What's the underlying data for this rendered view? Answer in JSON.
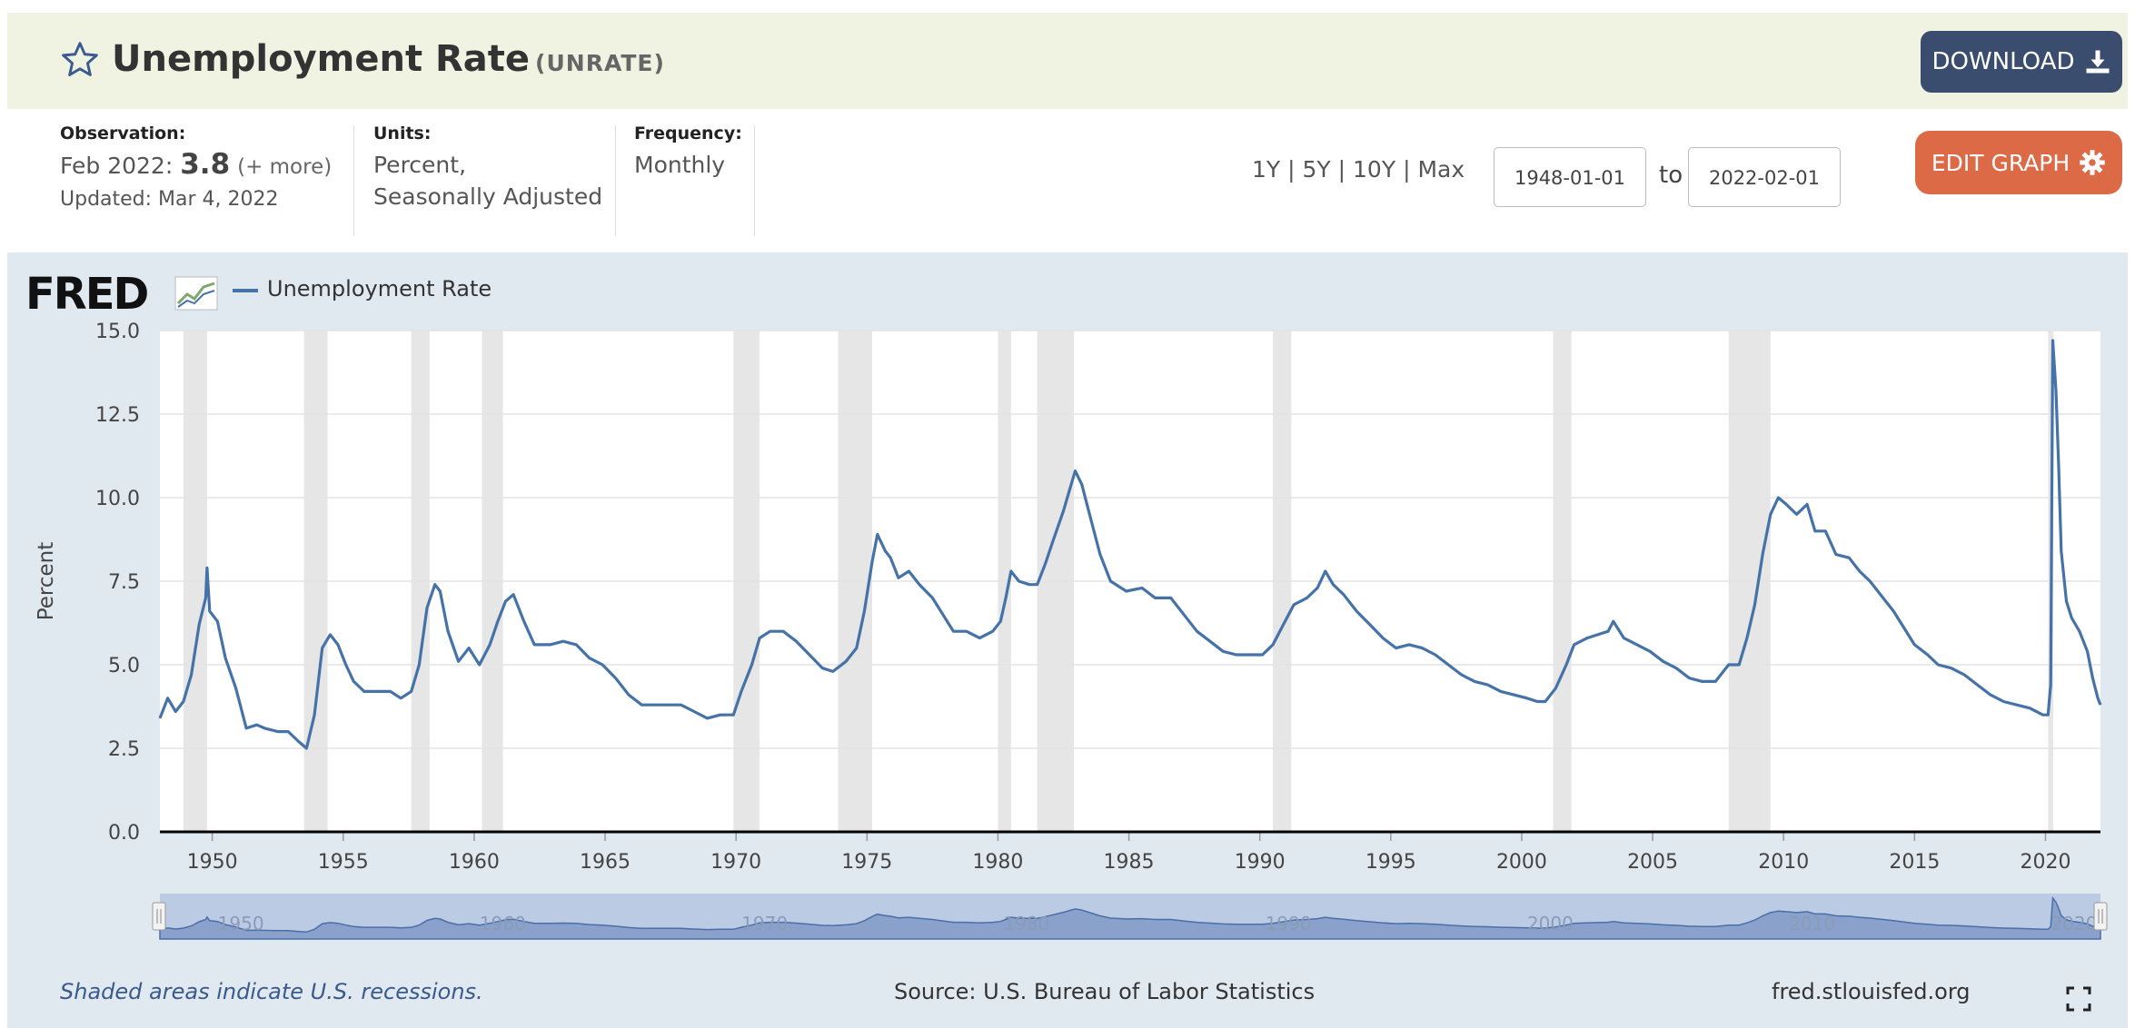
{
  "header": {
    "title": "Unemployment Rate",
    "series_code": "(UNRATE)",
    "download_label": "DOWNLOAD"
  },
  "observation": {
    "label": "Observation:",
    "period": "Feb 2022:",
    "value": "3.8",
    "more": "(+ more)",
    "updated": "Updated: Mar 4, 2022"
  },
  "units": {
    "label": "Units:",
    "line1": "Percent,",
    "line2": "Seasonally Adjusted"
  },
  "frequency": {
    "label": "Frequency:",
    "value": "Monthly"
  },
  "range_buttons": [
    "1Y",
    "5Y",
    "10Y",
    "Max"
  ],
  "date_range": {
    "start": "1948-01-01",
    "to_label": "to",
    "end": "2022-02-01"
  },
  "edit_graph_label": "EDIT GRAPH",
  "chart_header": {
    "logo": "FRED",
    "legend": "Unemployment Rate"
  },
  "footer": {
    "note": "Shaded areas indicate U.S. recessions.",
    "source": "Source: U.S. Bureau of Labor Statistics",
    "url": "fred.stlouisfed.org"
  },
  "colors": {
    "line": "#4572a7",
    "recession": "#e6e6e6",
    "accent_edit": "#dc6a46",
    "download_bg": "#3b4d6e"
  },
  "chart_data": {
    "type": "line",
    "title": "Unemployment Rate",
    "ylabel": "Percent",
    "xlabel": "",
    "xlim": [
      1948.0,
      2022.1
    ],
    "ylim": [
      0,
      15
    ],
    "yticks": [
      0.0,
      2.5,
      5.0,
      7.5,
      10.0,
      12.5,
      15.0
    ],
    "ytick_labels": [
      "0.0",
      "2.5",
      "5.0",
      "7.5",
      "10.0",
      "12.5",
      "15.0"
    ],
    "xticks": [
      1950,
      1955,
      1960,
      1965,
      1970,
      1975,
      1980,
      1985,
      1990,
      1995,
      2000,
      2005,
      2010,
      2015,
      2020
    ],
    "navigator_labels": [
      1950,
      1960,
      1970,
      1980,
      1990,
      2000,
      2010,
      2020
    ],
    "recessions": [
      [
        1948.9,
        1949.8
      ],
      [
        1953.5,
        1954.4
      ],
      [
        1957.6,
        1958.3
      ],
      [
        1960.3,
        1961.1
      ],
      [
        1969.9,
        1970.9
      ],
      [
        1973.9,
        1975.2
      ],
      [
        1980.0,
        1980.5
      ],
      [
        1981.5,
        1982.9
      ],
      [
        1990.5,
        1991.2
      ],
      [
        2001.2,
        2001.9
      ],
      [
        2007.9,
        2009.5
      ],
      [
        2020.1,
        2020.3
      ]
    ],
    "series": [
      {
        "name": "Unemployment Rate",
        "points": [
          [
            1948.0,
            3.4
          ],
          [
            1948.3,
            4.0
          ],
          [
            1948.6,
            3.6
          ],
          [
            1948.9,
            3.9
          ],
          [
            1949.2,
            4.7
          ],
          [
            1949.5,
            6.2
          ],
          [
            1949.75,
            7.0
          ],
          [
            1949.8,
            7.9
          ],
          [
            1949.9,
            6.6
          ],
          [
            1950.2,
            6.3
          ],
          [
            1950.5,
            5.2
          ],
          [
            1950.9,
            4.3
          ],
          [
            1951.3,
            3.1
          ],
          [
            1951.7,
            3.2
          ],
          [
            1952.0,
            3.1
          ],
          [
            1952.5,
            3.0
          ],
          [
            1952.9,
            3.0
          ],
          [
            1953.3,
            2.7
          ],
          [
            1953.6,
            2.5
          ],
          [
            1953.9,
            3.5
          ],
          [
            1954.2,
            5.5
          ],
          [
            1954.5,
            5.9
          ],
          [
            1954.8,
            5.6
          ],
          [
            1955.1,
            5.0
          ],
          [
            1955.4,
            4.5
          ],
          [
            1955.8,
            4.2
          ],
          [
            1956.3,
            4.2
          ],
          [
            1956.8,
            4.2
          ],
          [
            1957.2,
            4.0
          ],
          [
            1957.6,
            4.2
          ],
          [
            1957.9,
            5.0
          ],
          [
            1958.2,
            6.7
          ],
          [
            1958.5,
            7.4
          ],
          [
            1958.7,
            7.2
          ],
          [
            1959.0,
            6.0
          ],
          [
            1959.4,
            5.1
          ],
          [
            1959.8,
            5.5
          ],
          [
            1960.2,
            5.0
          ],
          [
            1960.6,
            5.6
          ],
          [
            1960.9,
            6.3
          ],
          [
            1961.2,
            6.9
          ],
          [
            1961.5,
            7.1
          ],
          [
            1961.9,
            6.3
          ],
          [
            1962.3,
            5.6
          ],
          [
            1962.9,
            5.6
          ],
          [
            1963.4,
            5.7
          ],
          [
            1963.9,
            5.6
          ],
          [
            1964.4,
            5.2
          ],
          [
            1964.9,
            5.0
          ],
          [
            1965.4,
            4.6
          ],
          [
            1965.9,
            4.1
          ],
          [
            1966.4,
            3.8
          ],
          [
            1966.9,
            3.8
          ],
          [
            1967.4,
            3.8
          ],
          [
            1967.9,
            3.8
          ],
          [
            1968.4,
            3.6
          ],
          [
            1968.9,
            3.4
          ],
          [
            1969.4,
            3.5
          ],
          [
            1969.9,
            3.5
          ],
          [
            1970.2,
            4.2
          ],
          [
            1970.6,
            5.0
          ],
          [
            1970.9,
            5.8
          ],
          [
            1971.3,
            6.0
          ],
          [
            1971.8,
            6.0
          ],
          [
            1972.3,
            5.7
          ],
          [
            1972.8,
            5.3
          ],
          [
            1973.3,
            4.9
          ],
          [
            1973.7,
            4.8
          ],
          [
            1974.2,
            5.1
          ],
          [
            1974.6,
            5.5
          ],
          [
            1974.9,
            6.6
          ],
          [
            1975.2,
            8.1
          ],
          [
            1975.4,
            8.9
          ],
          [
            1975.7,
            8.4
          ],
          [
            1975.9,
            8.2
          ],
          [
            1976.2,
            7.6
          ],
          [
            1976.6,
            7.8
          ],
          [
            1977.0,
            7.4
          ],
          [
            1977.5,
            7.0
          ],
          [
            1977.9,
            6.5
          ],
          [
            1978.3,
            6.0
          ],
          [
            1978.8,
            6.0
          ],
          [
            1979.3,
            5.8
          ],
          [
            1979.8,
            6.0
          ],
          [
            1980.1,
            6.3
          ],
          [
            1980.3,
            7.0
          ],
          [
            1980.5,
            7.8
          ],
          [
            1980.8,
            7.5
          ],
          [
            1981.2,
            7.4
          ],
          [
            1981.5,
            7.4
          ],
          [
            1981.8,
            8.0
          ],
          [
            1982.1,
            8.7
          ],
          [
            1982.5,
            9.6
          ],
          [
            1982.8,
            10.4
          ],
          [
            1982.95,
            10.8
          ],
          [
            1983.2,
            10.4
          ],
          [
            1983.5,
            9.5
          ],
          [
            1983.9,
            8.3
          ],
          [
            1984.3,
            7.5
          ],
          [
            1984.9,
            7.2
          ],
          [
            1985.5,
            7.3
          ],
          [
            1986.0,
            7.0
          ],
          [
            1986.6,
            7.0
          ],
          [
            1987.1,
            6.5
          ],
          [
            1987.6,
            6.0
          ],
          [
            1988.1,
            5.7
          ],
          [
            1988.6,
            5.4
          ],
          [
            1989.1,
            5.3
          ],
          [
            1989.6,
            5.3
          ],
          [
            1990.1,
            5.3
          ],
          [
            1990.5,
            5.6
          ],
          [
            1990.9,
            6.2
          ],
          [
            1991.3,
            6.8
          ],
          [
            1991.8,
            7.0
          ],
          [
            1992.2,
            7.3
          ],
          [
            1992.5,
            7.8
          ],
          [
            1992.8,
            7.4
          ],
          [
            1993.2,
            7.1
          ],
          [
            1993.7,
            6.6
          ],
          [
            1994.2,
            6.2
          ],
          [
            1994.7,
            5.8
          ],
          [
            1995.2,
            5.5
          ],
          [
            1995.7,
            5.6
          ],
          [
            1996.2,
            5.5
          ],
          [
            1996.7,
            5.3
          ],
          [
            1997.2,
            5.0
          ],
          [
            1997.7,
            4.7
          ],
          [
            1998.2,
            4.5
          ],
          [
            1998.7,
            4.4
          ],
          [
            1999.2,
            4.2
          ],
          [
            1999.7,
            4.1
          ],
          [
            2000.2,
            4.0
          ],
          [
            2000.6,
            3.9
          ],
          [
            2000.9,
            3.9
          ],
          [
            2001.3,
            4.3
          ],
          [
            2001.7,
            5.0
          ],
          [
            2002.0,
            5.6
          ],
          [
            2002.5,
            5.8
          ],
          [
            2002.9,
            5.9
          ],
          [
            2003.3,
            6.0
          ],
          [
            2003.5,
            6.3
          ],
          [
            2003.9,
            5.8
          ],
          [
            2004.4,
            5.6
          ],
          [
            2004.9,
            5.4
          ],
          [
            2005.4,
            5.1
          ],
          [
            2005.9,
            4.9
          ],
          [
            2006.4,
            4.6
          ],
          [
            2006.9,
            4.5
          ],
          [
            2007.4,
            4.5
          ],
          [
            2007.9,
            5.0
          ],
          [
            2008.3,
            5.0
          ],
          [
            2008.6,
            5.8
          ],
          [
            2008.9,
            6.8
          ],
          [
            2009.2,
            8.3
          ],
          [
            2009.5,
            9.5
          ],
          [
            2009.8,
            10.0
          ],
          [
            2010.1,
            9.8
          ],
          [
            2010.5,
            9.5
          ],
          [
            2010.9,
            9.8
          ],
          [
            2011.2,
            9.0
          ],
          [
            2011.6,
            9.0
          ],
          [
            2012.0,
            8.3
          ],
          [
            2012.5,
            8.2
          ],
          [
            2012.9,
            7.8
          ],
          [
            2013.3,
            7.5
          ],
          [
            2013.8,
            7.0
          ],
          [
            2014.2,
            6.6
          ],
          [
            2014.6,
            6.1
          ],
          [
            2015.0,
            5.6
          ],
          [
            2015.5,
            5.3
          ],
          [
            2015.9,
            5.0
          ],
          [
            2016.4,
            4.9
          ],
          [
            2016.9,
            4.7
          ],
          [
            2017.4,
            4.4
          ],
          [
            2017.9,
            4.1
          ],
          [
            2018.4,
            3.9
          ],
          [
            2018.9,
            3.8
          ],
          [
            2019.4,
            3.7
          ],
          [
            2019.9,
            3.5
          ],
          [
            2020.1,
            3.5
          ],
          [
            2020.2,
            4.4
          ],
          [
            2020.28,
            14.7
          ],
          [
            2020.4,
            13.2
          ],
          [
            2020.5,
            11.0
          ],
          [
            2020.6,
            8.4
          ],
          [
            2020.8,
            6.9
          ],
          [
            2021.0,
            6.4
          ],
          [
            2021.3,
            6.0
          ],
          [
            2021.6,
            5.4
          ],
          [
            2021.8,
            4.6
          ],
          [
            2022.0,
            4.0
          ],
          [
            2022.1,
            3.8
          ]
        ]
      }
    ]
  }
}
